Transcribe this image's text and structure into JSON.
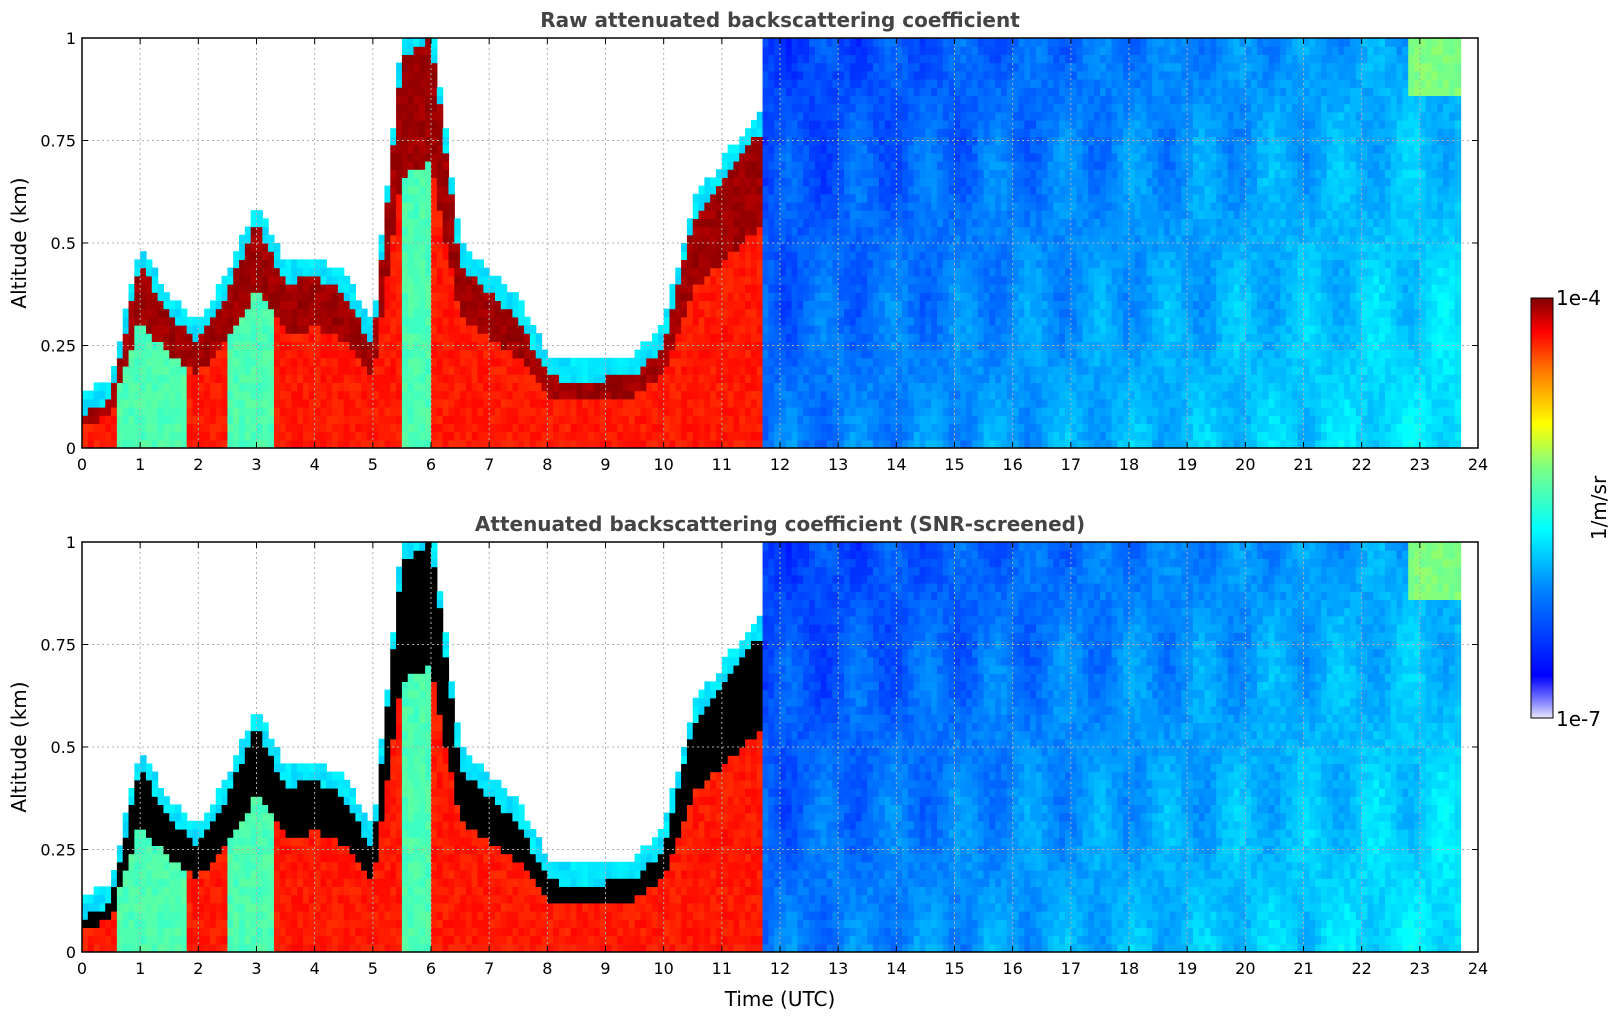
{
  "chart_data": [
    {
      "type": "heatmap",
      "title": "Raw attenuated backscattering coefficient",
      "xlabel": "",
      "ylabel": "Altitude (km)",
      "xlim": [
        0,
        24
      ],
      "ylim": [
        0,
        1
      ],
      "x_ticks": [
        "0",
        "1",
        "2",
        "3",
        "4",
        "5",
        "6",
        "7",
        "8",
        "9",
        "10",
        "11",
        "12",
        "13",
        "14",
        "15",
        "16",
        "17",
        "18",
        "19",
        "20",
        "21",
        "22",
        "23",
        "24"
      ],
      "y_ticks": [
        "0",
        "0.25",
        "0.5",
        "0.75",
        "1"
      ],
      "grid": true,
      "data_extent_hours": [
        0,
        23.65
      ],
      "layers": [
        {
          "x": [
            0,
            0.5,
            1,
            1.5,
            2,
            2.5,
            3,
            3.5,
            4,
            4.5,
            5,
            5.5,
            6,
            6.5,
            7,
            7.5,
            8,
            8.5,
            9,
            9.5,
            10,
            10.5,
            11,
            11.5,
            12
          ],
          "top_km": [
            0.08,
            0.12,
            0.45,
            0.32,
            0.26,
            0.38,
            0.55,
            0.4,
            0.42,
            0.38,
            0.25,
            0.95,
            1.0,
            0.45,
            0.38,
            0.32,
            0.18,
            0.16,
            0.17,
            0.18,
            0.25,
            0.55,
            0.65,
            0.75,
            0.8
          ],
          "level": "high"
        }
      ]
    },
    {
      "type": "heatmap",
      "title": "Attenuated backscattering coefficient (SNR-screened)",
      "xlabel": "Time (UTC)",
      "ylabel": "Altitude (km)",
      "xlim": [
        0,
        24
      ],
      "ylim": [
        0,
        1
      ],
      "x_ticks": [
        "0",
        "1",
        "2",
        "3",
        "4",
        "5",
        "6",
        "7",
        "8",
        "9",
        "10",
        "11",
        "12",
        "13",
        "14",
        "15",
        "16",
        "17",
        "18",
        "19",
        "20",
        "21",
        "22",
        "23",
        "24"
      ],
      "y_ticks": [
        "0",
        "0.25",
        "0.5",
        "0.75",
        "1"
      ],
      "grid": true,
      "data_extent_hours": [
        0,
        23.65
      ]
    }
  ],
  "colorbar": {
    "min_label": "1e-7",
    "max_label": "1e-4",
    "label": "1/m/sr",
    "colormap": "jet"
  }
}
